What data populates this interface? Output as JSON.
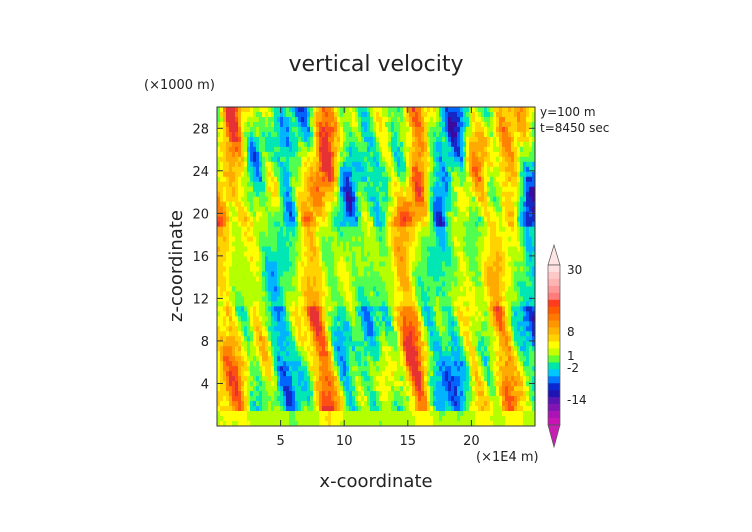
{
  "chart_data": {
    "type": "heatmap",
    "title": "vertical velocity",
    "xlabel": "x-coordinate",
    "ylabel": "z-coordinate",
    "x_unit": "(×1E4 m)",
    "y_unit": "(×1000 m)",
    "annotations": [
      "y=100  m",
      "t=8450  sec"
    ],
    "xlim": [
      0,
      25
    ],
    "ylim": [
      0,
      30
    ],
    "x_ticks": [
      5,
      10,
      15,
      20
    ],
    "y_ticks": [
      4,
      8,
      12,
      16,
      20,
      24,
      28
    ],
    "colorbar": {
      "ticks": [
        30,
        8,
        1,
        -2,
        -14
      ],
      "levels": [
        {
          "color": "#ffe0e0"
        },
        {
          "color": "#ffc8c8"
        },
        {
          "color": "#ffb4b4"
        },
        {
          "color": "#ff9898"
        },
        {
          "color": "#ff7c7c"
        },
        {
          "color": "#ff3c1e"
        },
        {
          "color": "#ff5a00"
        },
        {
          "color": "#ff7800"
        },
        {
          "color": "#ff9600"
        },
        {
          "color": "#ffb400"
        },
        {
          "color": "#ffd200"
        },
        {
          "color": "#ffff00"
        },
        {
          "color": "#c8ff00"
        },
        {
          "color": "#64ff32"
        },
        {
          "color": "#00e6aa"
        },
        {
          "color": "#00c8ff"
        },
        {
          "color": "#0078ff"
        },
        {
          "color": "#0a28d2"
        },
        {
          "color": "#1e14b4"
        },
        {
          "color": "#5a14b4"
        },
        {
          "color": "#8214b4"
        },
        {
          "color": "#aa14b4"
        },
        {
          "color": "#c814b4"
        }
      ],
      "upper_color": "#ffe4e4",
      "lower_color": "#c81eb4"
    }
  }
}
